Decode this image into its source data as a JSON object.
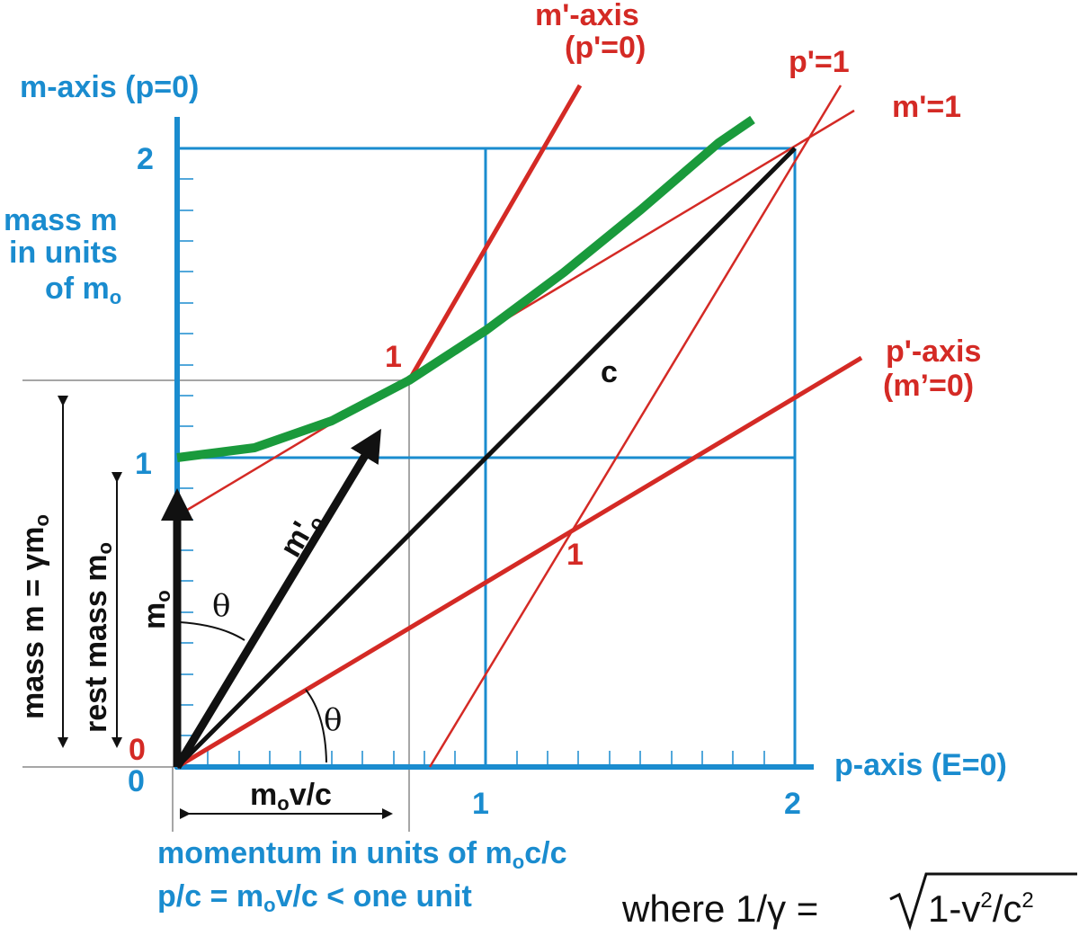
{
  "m_axis": {
    "title": "m-axis (p=0)",
    "tick_2": "2",
    "tick_1": "1",
    "tick_0": "0"
  },
  "mass_units": {
    "line1": "mass m",
    "line2": "in units",
    "line3": "of m",
    "line3_sub": "o"
  },
  "m_prime_axis": {
    "line1": "m'-axis",
    "line2": "(p'=0)"
  },
  "p_prime_1": "p'=1",
  "m_prime_1": "m'=1",
  "p_prime_axis": {
    "line1": "p'-axis",
    "line2": "(m’=0)"
  },
  "red_labels": {
    "zero": "0",
    "one_m": "1",
    "one_p": "1"
  },
  "c_label": "c",
  "theta_upper": "θ",
  "theta_lower": "θ",
  "m_prime_o": {
    "main": "m'",
    "sub": "o"
  },
  "m_o": {
    "main": "m",
    "sub": "o"
  },
  "rest_mass": {
    "main": "rest mass m",
    "sub": "o"
  },
  "mass_m": {
    "main": "mass m = γm",
    "sub": "o"
  },
  "p_axis": {
    "title": "p-axis (E=0)",
    "tick_1": "1",
    "tick_2": "2"
  },
  "mov_c": {
    "part1": "m",
    "sub": "o",
    "part2": "v/c"
  },
  "momentum": {
    "line1_a": "momentum in units of m",
    "line1_sub": "o",
    "line1_b": "c/c",
    "line2_a": "p/c = m",
    "line2_sub": "o",
    "line2_b": "v/c < one unit"
  },
  "formula": {
    "text": "where 1/γ = ",
    "root_a": "1-v",
    "sup1": "2",
    "root_b": "/c",
    "sup2": "2"
  }
}
